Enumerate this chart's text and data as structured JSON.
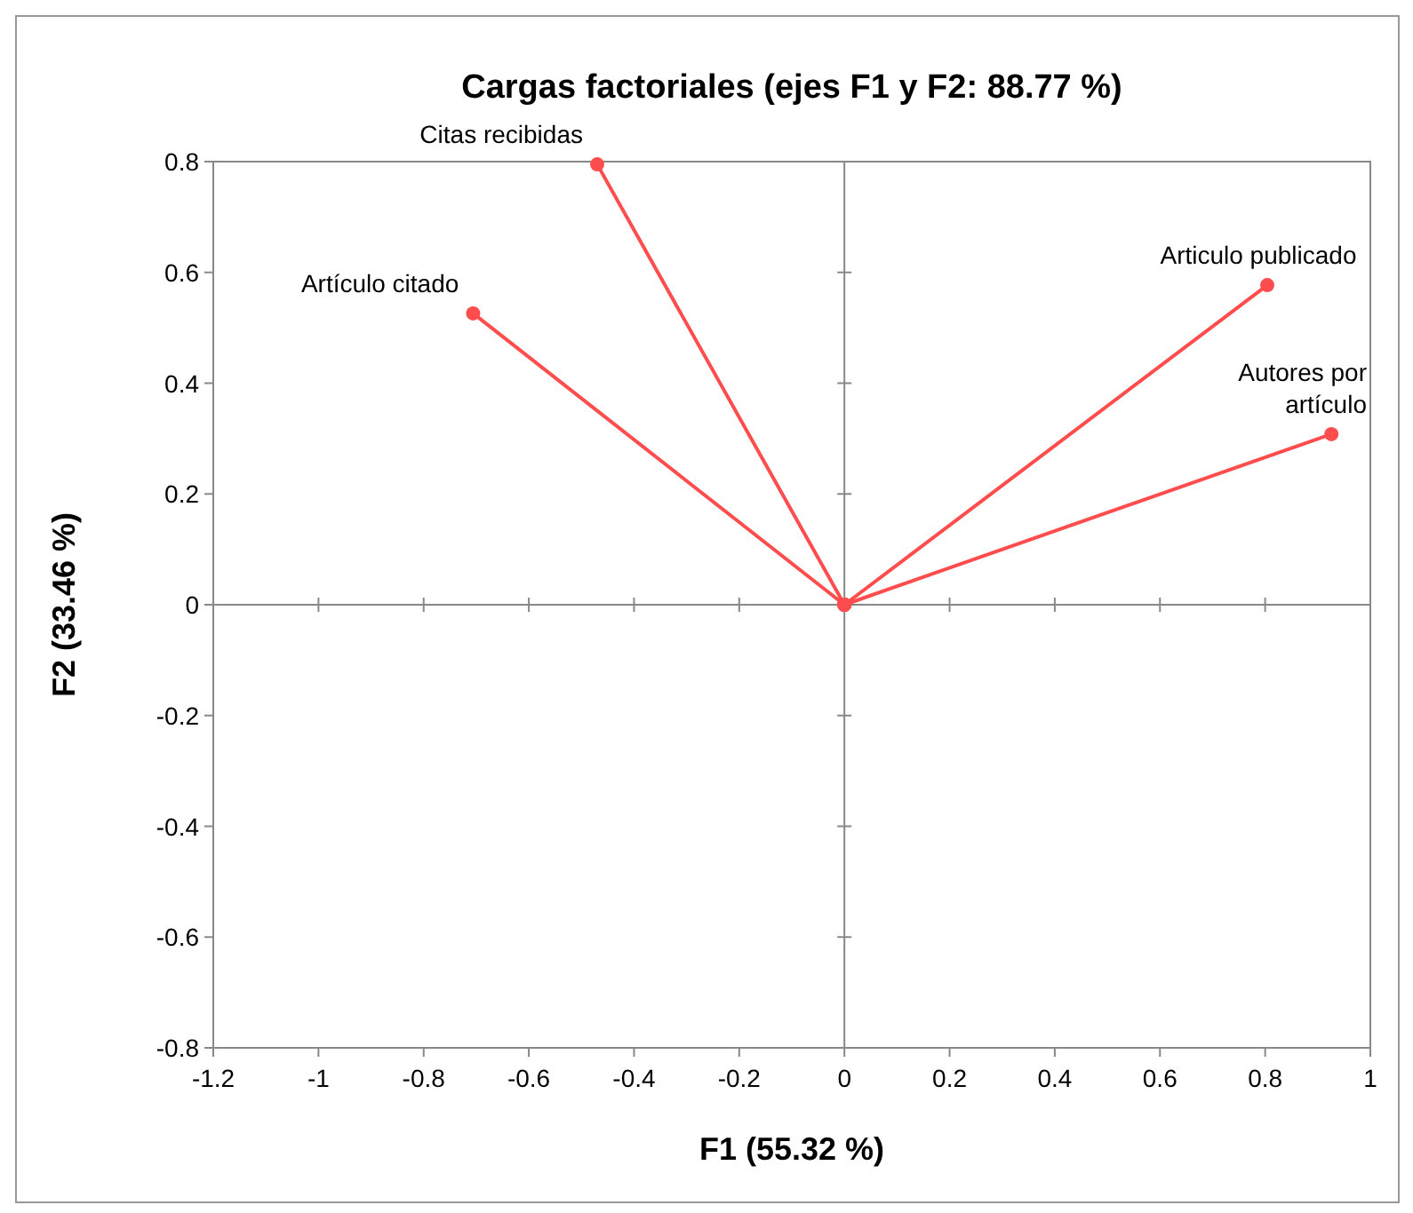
{
  "chart_data": {
    "type": "line",
    "title": "Cargas factoriales (ejes F1 y F2: 88.77 %)",
    "xlabel": "F1 (55.32 %)",
    "ylabel": "F2 (33.46 %)",
    "xlim": [
      -1.2,
      1
    ],
    "xticks": [
      -1.2,
      -1,
      -0.8,
      -0.6,
      -0.4,
      -0.2,
      0,
      0.2,
      0.4,
      0.6,
      0.8,
      1
    ],
    "ylim": [
      -0.8,
      0.8
    ],
    "yticks": [
      -0.8,
      -0.6,
      -0.4,
      -0.2,
      0,
      0.2,
      0.4,
      0.6,
      0.8
    ],
    "marker": "circle",
    "line_style": "solid",
    "series": [
      {
        "name": "Citas recibidas",
        "color": "#ff4d4d",
        "x": [
          0,
          -0.47
        ],
        "values": [
          0,
          0.795
        ]
      },
      {
        "name": "Artículo citado",
        "color": "#ff4d4d",
        "x": [
          0,
          -0.706
        ],
        "values": [
          0,
          0.526
        ]
      },
      {
        "name": "Articulo publicado",
        "color": "#ff4d4d",
        "x": [
          0,
          0.804
        ],
        "values": [
          0,
          0.577
        ]
      },
      {
        "name": "Autores por artículo",
        "color": "#ff4d4d",
        "x": [
          0,
          0.926
        ],
        "values": [
          0,
          0.308
        ]
      }
    ]
  }
}
